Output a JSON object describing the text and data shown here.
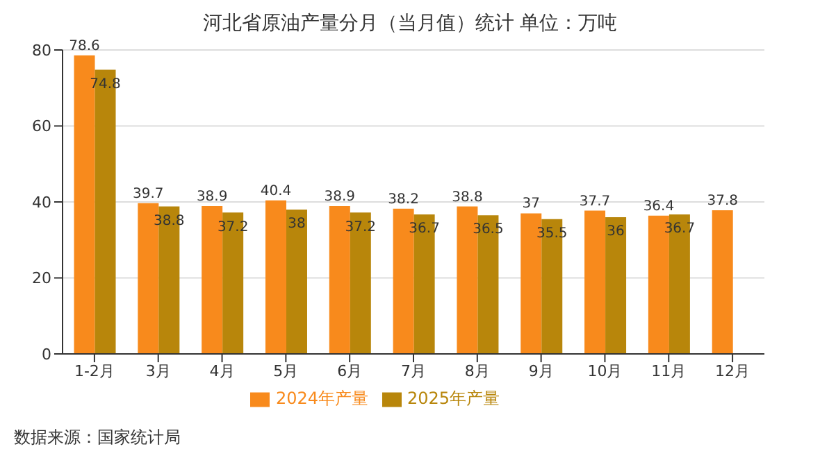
{
  "chart_data": {
    "type": "bar",
    "title": "河北省原油产量分月（当月值）统计  单位：万吨",
    "categories": [
      "1-2月",
      "3月",
      "4月",
      "5月",
      "6月",
      "7月",
      "8月",
      "9月",
      "10月",
      "11月",
      "12月"
    ],
    "series": [
      {
        "name": "2024年产量",
        "color": "#f88a1c",
        "values": [
          78.6,
          39.7,
          38.9,
          40.4,
          38.9,
          38.2,
          38.8,
          37,
          37.7,
          36.4,
          37.8
        ]
      },
      {
        "name": "2025年产量",
        "color": "#b8860b",
        "values": [
          74.8,
          38.8,
          37.2,
          38,
          37.2,
          36.7,
          36.5,
          35.5,
          36,
          36.7,
          null
        ]
      }
    ],
    "ylim": [
      0,
      80
    ],
    "yticks": [
      0,
      20,
      40,
      60,
      80
    ],
    "grid": "y",
    "legend": "bottom",
    "data_labels": true,
    "annotations": [
      "数据来源：国家统计局"
    ]
  }
}
